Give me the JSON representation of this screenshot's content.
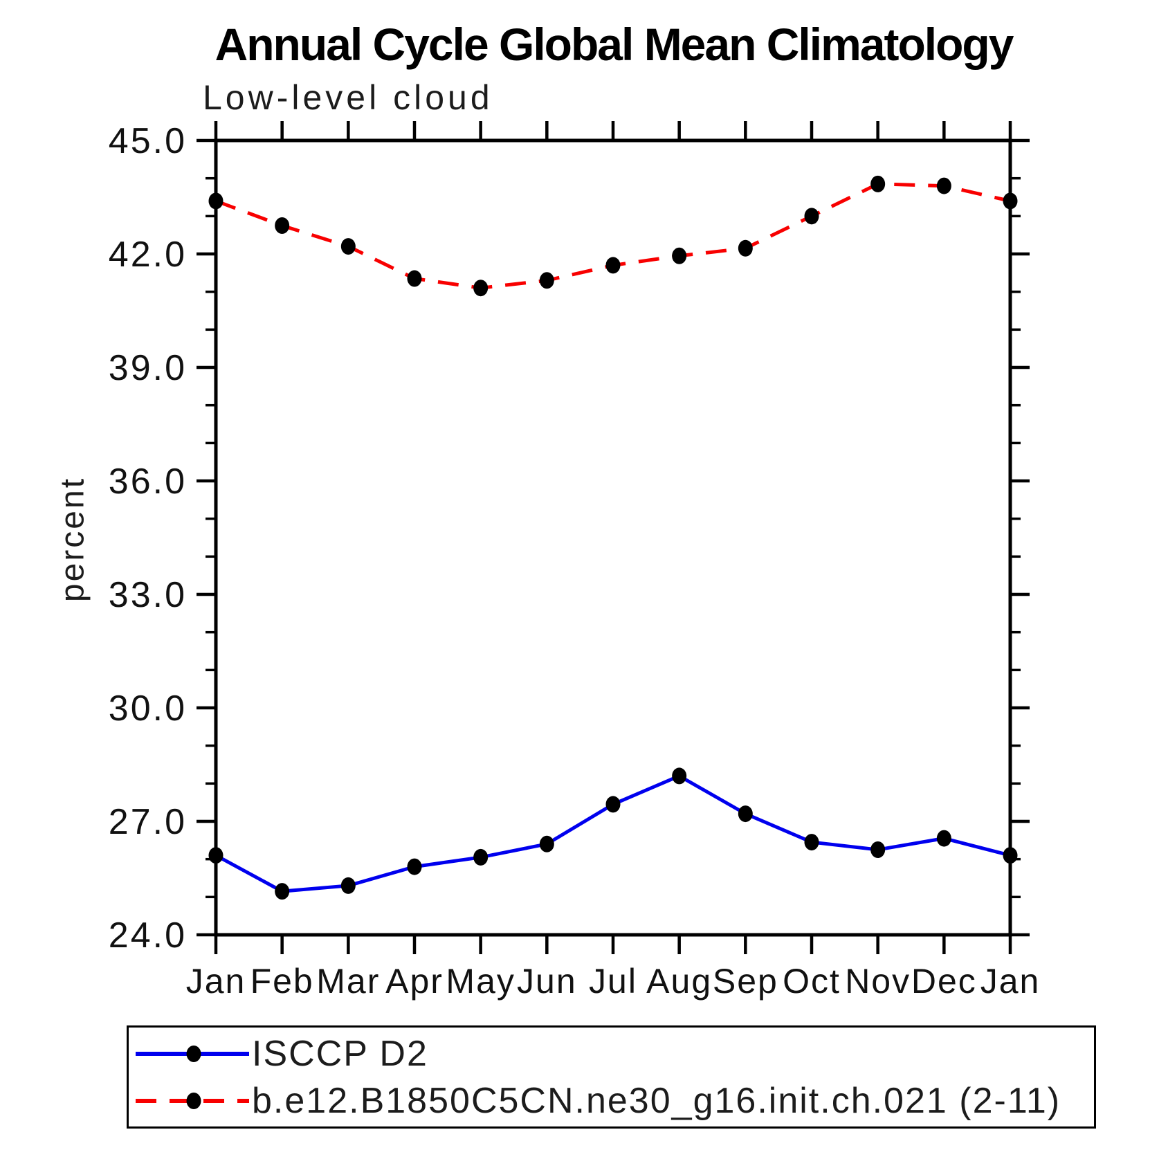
{
  "chart": {
    "title": "Annual Cycle Global Mean Climatology",
    "subtitle": "Low-level cloud",
    "ylabel": "percent"
  },
  "chart_data": {
    "type": "line",
    "title": "Annual Cycle Global Mean Climatology",
    "subtitle": "Low-level cloud",
    "xlabel": "",
    "ylabel": "percent",
    "categories": [
      "Jan",
      "Feb",
      "Mar",
      "Apr",
      "May",
      "Jun",
      "Jul",
      "Aug",
      "Sep",
      "Oct",
      "Nov",
      "Dec",
      "Jan"
    ],
    "ylim": [
      24.0,
      45.0
    ],
    "ytick_major_step": 3.0,
    "ytick_minor_step": 1.0,
    "ytick_labels": [
      "24.0",
      "27.0",
      "30.0",
      "33.0",
      "36.0",
      "39.0",
      "42.0",
      "45.0"
    ],
    "grid": false,
    "legend_position": "bottom-left",
    "axis_color": "#000000",
    "marker_color": "#000000",
    "series": [
      {
        "name": "ISCCP D2",
        "color": "#0000ee",
        "line_style": "solid",
        "marker": "filled-circle",
        "values": [
          26.1,
          25.15,
          25.3,
          25.8,
          26.05,
          26.4,
          27.45,
          28.2,
          27.2,
          26.45,
          26.25,
          26.55,
          26.1
        ]
      },
      {
        "name": "b.e12.B1850C5CN.ne30_g16.init.ch.021 (2-11)",
        "color": "#f80000",
        "line_style": "dashed",
        "marker": "filled-circle",
        "values": [
          43.4,
          42.75,
          42.2,
          41.35,
          41.1,
          41.3,
          41.7,
          41.95,
          42.15,
          43.0,
          43.85,
          43.8,
          43.4
        ]
      }
    ]
  }
}
